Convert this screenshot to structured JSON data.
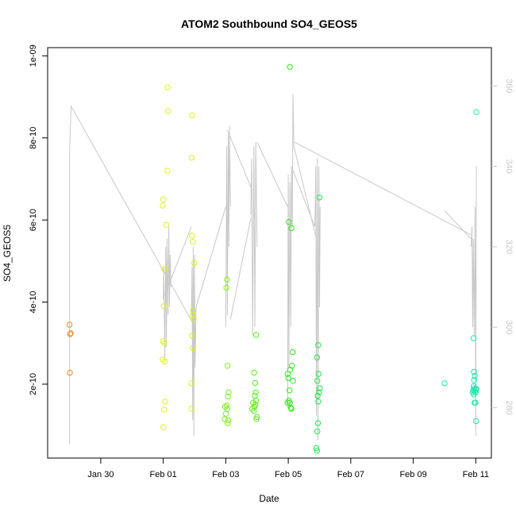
{
  "chart_data": {
    "type": "scatter",
    "title": "ATOM2 Southbound SO4_GEOS5",
    "xlabel": "Date",
    "ylabel": "SO4_GEOS5",
    "x_ticks": [
      "Jan 30",
      "Feb 01",
      "Feb 03",
      "Feb 05",
      "Feb 07",
      "Feb 09",
      "Feb 11"
    ],
    "x_tick_days": [
      30,
      32,
      34,
      36,
      38,
      40,
      42
    ],
    "xlim_days": [
      28.3,
      42.5
    ],
    "y_ticks": [
      "2e-10",
      "4e-10",
      "6e-10",
      "8e-10",
      "1e-09"
    ],
    "y_tick_values": [
      2e-10,
      4e-10,
      6e-10,
      8e-10,
      1e-09
    ],
    "ylim": [
      2e-11,
      1.02e-09
    ],
    "y2_ticks": [
      "280",
      "300",
      "320",
      "340",
      "360"
    ],
    "y2_tick_values": [
      280,
      300,
      320,
      340,
      360
    ],
    "y2lim": [
      267.5,
      369.5
    ],
    "grid": false,
    "legend": "none",
    "line_color": "#c8c8c8",
    "points": [
      {
        "x": 29.0,
        "y": 3.45e-10,
        "c": "#f08c1e"
      },
      {
        "x": 29.02,
        "y": 3.22e-10,
        "c": "#f08c1e"
      },
      {
        "x": 29.04,
        "y": 3.24e-10,
        "c": "#f08c1e"
      },
      {
        "x": 29.01,
        "y": 2.28e-10,
        "c": "#f08c1e"
      },
      {
        "x": 32.0,
        "y": 9.5e-11,
        "c": "#e0f01e"
      },
      {
        "x": 32.03,
        "y": 1.38e-10,
        "c": "#e0f01e"
      },
      {
        "x": 32.06,
        "y": 1.58e-10,
        "c": "#e0f01e"
      },
      {
        "x": 31.98,
        "y": 2.6e-10,
        "c": "#e0f01e"
      },
      {
        "x": 32.05,
        "y": 2.55e-10,
        "c": "#e0f01e"
      },
      {
        "x": 31.99,
        "y": 3.05e-10,
        "c": "#e0f01e"
      },
      {
        "x": 32.03,
        "y": 3e-10,
        "c": "#e0f01e"
      },
      {
        "x": 32.02,
        "y": 3.9e-10,
        "c": "#e0f01e"
      },
      {
        "x": 32.04,
        "y": 4.8e-10,
        "c": "#e0f01e"
      },
      {
        "x": 31.98,
        "y": 6.35e-10,
        "c": "#e0f01e"
      },
      {
        "x": 32.0,
        "y": 6.5e-10,
        "c": "#e0f01e"
      },
      {
        "x": 32.1,
        "y": 5.88e-10,
        "c": "#e0f01e"
      },
      {
        "x": 32.13,
        "y": 7.2e-10,
        "c": "#e0f01e"
      },
      {
        "x": 32.15,
        "y": 8.65e-10,
        "c": "#e0f01e"
      },
      {
        "x": 32.14,
        "y": 9.23e-10,
        "c": "#e0f01e"
      },
      {
        "x": 32.9,
        "y": 1.4e-10,
        "c": "#d8f01e"
      },
      {
        "x": 32.9,
        "y": 2.02e-10,
        "c": "#d8f01e"
      },
      {
        "x": 32.95,
        "y": 2.88e-10,
        "c": "#d8f01e"
      },
      {
        "x": 32.92,
        "y": 3.18e-10,
        "c": "#d8f01e"
      },
      {
        "x": 32.94,
        "y": 3.68e-10,
        "c": "#d8f01e"
      },
      {
        "x": 32.97,
        "y": 3.58e-10,
        "c": "#d8f01e"
      },
      {
        "x": 32.96,
        "y": 3.8e-10,
        "c": "#d8f01e"
      },
      {
        "x": 32.99,
        "y": 4.95e-10,
        "c": "#d8f01e"
      },
      {
        "x": 32.92,
        "y": 5.62e-10,
        "c": "#d8f01e"
      },
      {
        "x": 32.95,
        "y": 5.47e-10,
        "c": "#d8f01e"
      },
      {
        "x": 32.91,
        "y": 7.52e-10,
        "c": "#d8f01e"
      },
      {
        "x": 32.92,
        "y": 8.55e-10,
        "c": "#d8f01e"
      },
      {
        "x": 33.98,
        "y": 1.45e-10,
        "c": "#80f01e"
      },
      {
        "x": 34.0,
        "y": 1.28e-10,
        "c": "#80f01e"
      },
      {
        "x": 33.97,
        "y": 1.15e-10,
        "c": "#80f01e"
      },
      {
        "x": 34.06,
        "y": 1.05e-10,
        "c": "#80f01e"
      },
      {
        "x": 34.08,
        "y": 1.12e-10,
        "c": "#80f01e"
      },
      {
        "x": 34.05,
        "y": 1.4e-10,
        "c": "#80f01e"
      },
      {
        "x": 34.03,
        "y": 1.48e-10,
        "c": "#80f01e"
      },
      {
        "x": 34.07,
        "y": 1.7e-10,
        "c": "#80f01e"
      },
      {
        "x": 34.09,
        "y": 1.8e-10,
        "c": "#80f01e"
      },
      {
        "x": 34.06,
        "y": 2.45e-10,
        "c": "#80f01e"
      },
      {
        "x": 34.02,
        "y": 4.35e-10,
        "c": "#80f01e"
      },
      {
        "x": 34.04,
        "y": 4.55e-10,
        "c": "#80f01e"
      },
      {
        "x": 34.85,
        "y": 1.4e-10,
        "c": "#5af01e"
      },
      {
        "x": 34.9,
        "y": 1.35e-10,
        "c": "#5af01e"
      },
      {
        "x": 34.92,
        "y": 1.45e-10,
        "c": "#5af01e"
      },
      {
        "x": 34.88,
        "y": 1.55e-10,
        "c": "#5af01e"
      },
      {
        "x": 34.95,
        "y": 1.5e-10,
        "c": "#5af01e"
      },
      {
        "x": 34.97,
        "y": 1.6e-10,
        "c": "#5af01e"
      },
      {
        "x": 34.93,
        "y": 1.72e-10,
        "c": "#5af01e"
      },
      {
        "x": 34.96,
        "y": 1.8e-10,
        "c": "#5af01e"
      },
      {
        "x": 34.98,
        "y": 1.15e-10,
        "c": "#5af01e"
      },
      {
        "x": 35.0,
        "y": 1.2e-10,
        "c": "#5af01e"
      },
      {
        "x": 34.94,
        "y": 2.03e-10,
        "c": "#5af01e"
      },
      {
        "x": 34.91,
        "y": 2.28e-10,
        "c": "#5af01e"
      },
      {
        "x": 34.97,
        "y": 3.2e-10,
        "c": "#5af01e"
      },
      {
        "x": 35.98,
        "y": 1.55e-10,
        "c": "#32e61e"
      },
      {
        "x": 36.02,
        "y": 1.6e-10,
        "c": "#32e61e"
      },
      {
        "x": 36.05,
        "y": 1.55e-10,
        "c": "#32e61e"
      },
      {
        "x": 36.08,
        "y": 1.42e-10,
        "c": "#32e61e"
      },
      {
        "x": 36.1,
        "y": 1.4e-10,
        "c": "#32e61e"
      },
      {
        "x": 36.04,
        "y": 1.85e-10,
        "c": "#32e61e"
      },
      {
        "x": 36.0,
        "y": 2.15e-10,
        "c": "#32e61e"
      },
      {
        "x": 35.98,
        "y": 2.25e-10,
        "c": "#32e61e"
      },
      {
        "x": 36.06,
        "y": 2.35e-10,
        "c": "#32e61e"
      },
      {
        "x": 36.12,
        "y": 2.45e-10,
        "c": "#32e61e"
      },
      {
        "x": 36.15,
        "y": 2.08e-10,
        "c": "#32e61e"
      },
      {
        "x": 36.14,
        "y": 2.78e-10,
        "c": "#32e61e"
      },
      {
        "x": 36.02,
        "y": 5.95e-10,
        "c": "#32e61e"
      },
      {
        "x": 36.1,
        "y": 5.8e-10,
        "c": "#32e61e"
      },
      {
        "x": 36.05,
        "y": 9.73e-10,
        "c": "#32e61e"
      },
      {
        "x": 36.92,
        "y": 3.8e-11,
        "c": "#1ee64b"
      },
      {
        "x": 36.9,
        "y": 4.4e-11,
        "c": "#1ee64b"
      },
      {
        "x": 36.93,
        "y": 8.5e-11,
        "c": "#1ee64b"
      },
      {
        "x": 36.95,
        "y": 1.05e-10,
        "c": "#1ee64b"
      },
      {
        "x": 36.96,
        "y": 1.58e-10,
        "c": "#1ee64b"
      },
      {
        "x": 36.94,
        "y": 1.72e-10,
        "c": "#1ee64b"
      },
      {
        "x": 36.99,
        "y": 1.8e-10,
        "c": "#1ee64b"
      },
      {
        "x": 37.01,
        "y": 1.9e-10,
        "c": "#1ee64b"
      },
      {
        "x": 36.93,
        "y": 2.08e-10,
        "c": "#1ee64b"
      },
      {
        "x": 36.97,
        "y": 2.25e-10,
        "c": "#1ee64b"
      },
      {
        "x": 36.92,
        "y": 2.65e-10,
        "c": "#1ee64b"
      },
      {
        "x": 36.96,
        "y": 2.95e-10,
        "c": "#1ee64b"
      },
      {
        "x": 37.0,
        "y": 6.55e-10,
        "c": "#1ee64b"
      },
      {
        "x": 41.0,
        "y": 2.02e-10,
        "c": "#1ee6aa"
      },
      {
        "x": 41.9,
        "y": 1.8e-10,
        "c": "#1ee6aa"
      },
      {
        "x": 41.92,
        "y": 1.85e-10,
        "c": "#1ee6aa"
      },
      {
        "x": 41.94,
        "y": 1.75e-10,
        "c": "#1ee6aa"
      },
      {
        "x": 41.95,
        "y": 1.9e-10,
        "c": "#1ee6aa"
      },
      {
        "x": 41.97,
        "y": 1.82e-10,
        "c": "#1ee6aa"
      },
      {
        "x": 41.99,
        "y": 1.88e-10,
        "c": "#1ee6aa"
      },
      {
        "x": 42.0,
        "y": 1.8e-10,
        "c": "#1ee6aa"
      },
      {
        "x": 42.02,
        "y": 1.88e-10,
        "c": "#1ee6aa"
      },
      {
        "x": 41.93,
        "y": 1.95e-10,
        "c": "#1ee6aa"
      },
      {
        "x": 41.95,
        "y": 2.1e-10,
        "c": "#1ee6aa"
      },
      {
        "x": 41.97,
        "y": 2.2e-10,
        "c": "#1ee6aa"
      },
      {
        "x": 41.94,
        "y": 2.3e-10,
        "c": "#1ee6aa"
      },
      {
        "x": 41.96,
        "y": 1.55e-10,
        "c": "#1ee6aa"
      },
      {
        "x": 41.99,
        "y": 1.55e-10,
        "c": "#1ee6aa"
      },
      {
        "x": 41.93,
        "y": 3.12e-10,
        "c": "#1ee6aa"
      },
      {
        "x": 42.01,
        "y": 1.1e-10,
        "c": "#1ee6aa"
      },
      {
        "x": 42.02,
        "y": 8.63e-10,
        "c": "#1ee6aa"
      }
    ],
    "line_series": [
      {
        "x": [
          29.0,
          29.0,
          29.05
        ],
        "y": [
          271,
          343,
          355
        ]
      },
      {
        "x": [
          29.05,
          32.95
        ],
        "y": [
          355,
          301
        ]
      },
      {
        "x": [
          32.0,
          32.02,
          32.05,
          32.08,
          32.1,
          32.12,
          32.15,
          32.18,
          32.2,
          32.22,
          32.25
        ],
        "y": [
          307,
          315,
          292,
          320,
          295,
          322,
          303,
          325,
          305,
          318,
          310
        ]
      },
      {
        "x": [
          32.05,
          32.9
        ],
        "y": [
          308,
          325
        ]
      },
      {
        "x": [
          32.9,
          32.92,
          32.94,
          32.96,
          32.98,
          33.0,
          33.02,
          33.05
        ],
        "y": [
          303,
          315,
          277,
          320,
          273,
          318,
          290,
          305
        ]
      },
      {
        "x": [
          33.05,
          34.0
        ],
        "y": [
          305,
          330
        ]
      },
      {
        "x": [
          34.0,
          34.03,
          34.05,
          34.08,
          34.1,
          34.12,
          34.15
        ],
        "y": [
          300,
          345,
          303,
          348,
          320,
          350,
          330
        ]
      },
      {
        "x": [
          34.05,
          34.85
        ],
        "y": [
          349,
          334
        ]
      },
      {
        "x": [
          34.15,
          34.8
        ],
        "y": [
          302,
          327
        ]
      },
      {
        "x": [
          34.8,
          34.83,
          34.86,
          34.9,
          34.93,
          34.96,
          35.0
        ],
        "y": [
          328,
          342,
          298,
          345,
          300,
          346,
          320
        ]
      },
      {
        "x": [
          35.0,
          35.98
        ],
        "y": [
          346,
          330
        ]
      },
      {
        "x": [
          35.98,
          36.0,
          36.02,
          36.05,
          36.08,
          36.1,
          36.13,
          36.15,
          36.18
        ],
        "y": [
          280,
          338,
          290,
          336,
          300,
          340,
          325,
          358,
          345
        ]
      },
      {
        "x": [
          36.18,
          36.9
        ],
        "y": [
          345,
          322
        ]
      },
      {
        "x": [
          36.1,
          36.85
        ],
        "y": [
          340,
          325
        ]
      },
      {
        "x": [
          36.85,
          36.88,
          36.9,
          36.93,
          36.95,
          36.98,
          37.0,
          37.02
        ],
        "y": [
          325,
          340,
          278,
          342,
          272,
          340,
          305,
          330
        ]
      },
      {
        "x": [
          36.2,
          41.85
        ],
        "y": [
          346,
          323
        ]
      },
      {
        "x": [
          41.0,
          41.85
        ],
        "y": [
          329,
          322
        ]
      },
      {
        "x": [
          41.85,
          41.88,
          41.9,
          41.92,
          41.95,
          41.98,
          42.0,
          42.02
        ],
        "y": [
          320,
          325,
          300,
          322,
          298,
          330,
          273,
          340
        ]
      }
    ]
  }
}
